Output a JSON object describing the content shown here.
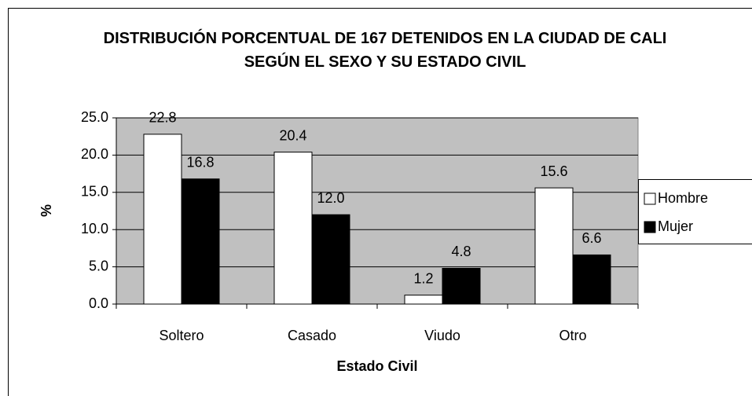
{
  "chart_data": {
    "type": "bar",
    "title": "DISTRIBUCIÓN PORCENTUAL DE 167 DETENIDOS EN LA CIUDAD DE CALI SEGÚN EL SEXO Y SU ESTADO CIVIL",
    "xlabel": "Estado Civil",
    "ylabel": "%",
    "categories": [
      "Soltero",
      "Casado",
      "Viudo",
      "Otro"
    ],
    "series": [
      {
        "name": "Hombre",
        "color": "#ffffff",
        "values": [
          22.8,
          20.4,
          1.2,
          15.6
        ],
        "value_labels": [
          "22.8",
          "20.4",
          "1.2",
          "15.6"
        ]
      },
      {
        "name": "Mujer",
        "color": "#000000",
        "values": [
          16.8,
          12.0,
          4.8,
          6.6
        ],
        "value_labels": [
          "16.8",
          "12.0",
          "4.8",
          "6.6"
        ]
      }
    ],
    "ylim": [
      0,
      25
    ],
    "yticks": [
      {
        "value": 0,
        "label": "0.0"
      },
      {
        "value": 5,
        "label": "5.0"
      },
      {
        "value": 10,
        "label": "10.0"
      },
      {
        "value": 15,
        "label": "15.0"
      },
      {
        "value": 20,
        "label": "20.0"
      },
      {
        "value": 25,
        "label": "25.0"
      }
    ],
    "grid": true,
    "legend": "right",
    "plot_background": "#c0c0c0"
  }
}
